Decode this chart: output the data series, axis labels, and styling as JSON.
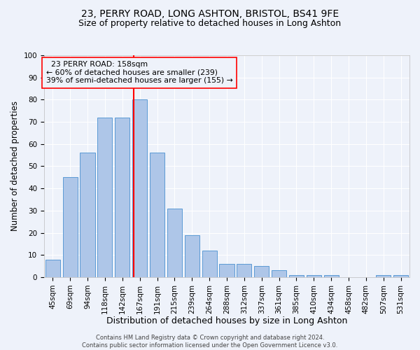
{
  "title1": "23, PERRY ROAD, LONG ASHTON, BRISTOL, BS41 9FE",
  "title2": "Size of property relative to detached houses in Long Ashton",
  "xlabel": "Distribution of detached houses by size in Long Ashton",
  "ylabel": "Number of detached properties",
  "footer1": "Contains HM Land Registry data © Crown copyright and database right 2024.",
  "footer2": "Contains public sector information licensed under the Open Government Licence v3.0.",
  "bar_labels": [
    "45sqm",
    "69sqm",
    "94sqm",
    "118sqm",
    "142sqm",
    "167sqm",
    "191sqm",
    "215sqm",
    "239sqm",
    "264sqm",
    "288sqm",
    "312sqm",
    "337sqm",
    "361sqm",
    "385sqm",
    "410sqm",
    "434sqm",
    "458sqm",
    "482sqm",
    "507sqm",
    "531sqm"
  ],
  "bar_values": [
    8,
    45,
    56,
    72,
    72,
    80,
    56,
    31,
    19,
    12,
    6,
    6,
    5,
    3,
    1,
    1,
    1,
    0,
    0,
    1,
    1
  ],
  "bar_color": "#aec6e8",
  "bar_edgecolor": "#5b9bd5",
  "property_line_label": "23 PERRY ROAD: 158sqm",
  "annotation_line1": "← 60% of detached houses are smaller (239)",
  "annotation_line2": "39% of semi-detached houses are larger (155) →",
  "annotation_box_edgecolor": "red",
  "vline_color": "red",
  "ylim": [
    0,
    100
  ],
  "background_color": "#eef2fa",
  "grid_color": "#ffffff",
  "title_fontsize": 10,
  "subtitle_fontsize": 9,
  "tick_fontsize": 7.5,
  "ylabel_fontsize": 8.5,
  "xlabel_fontsize": 9,
  "annotation_fontsize": 7.8,
  "footer_fontsize": 6.0
}
